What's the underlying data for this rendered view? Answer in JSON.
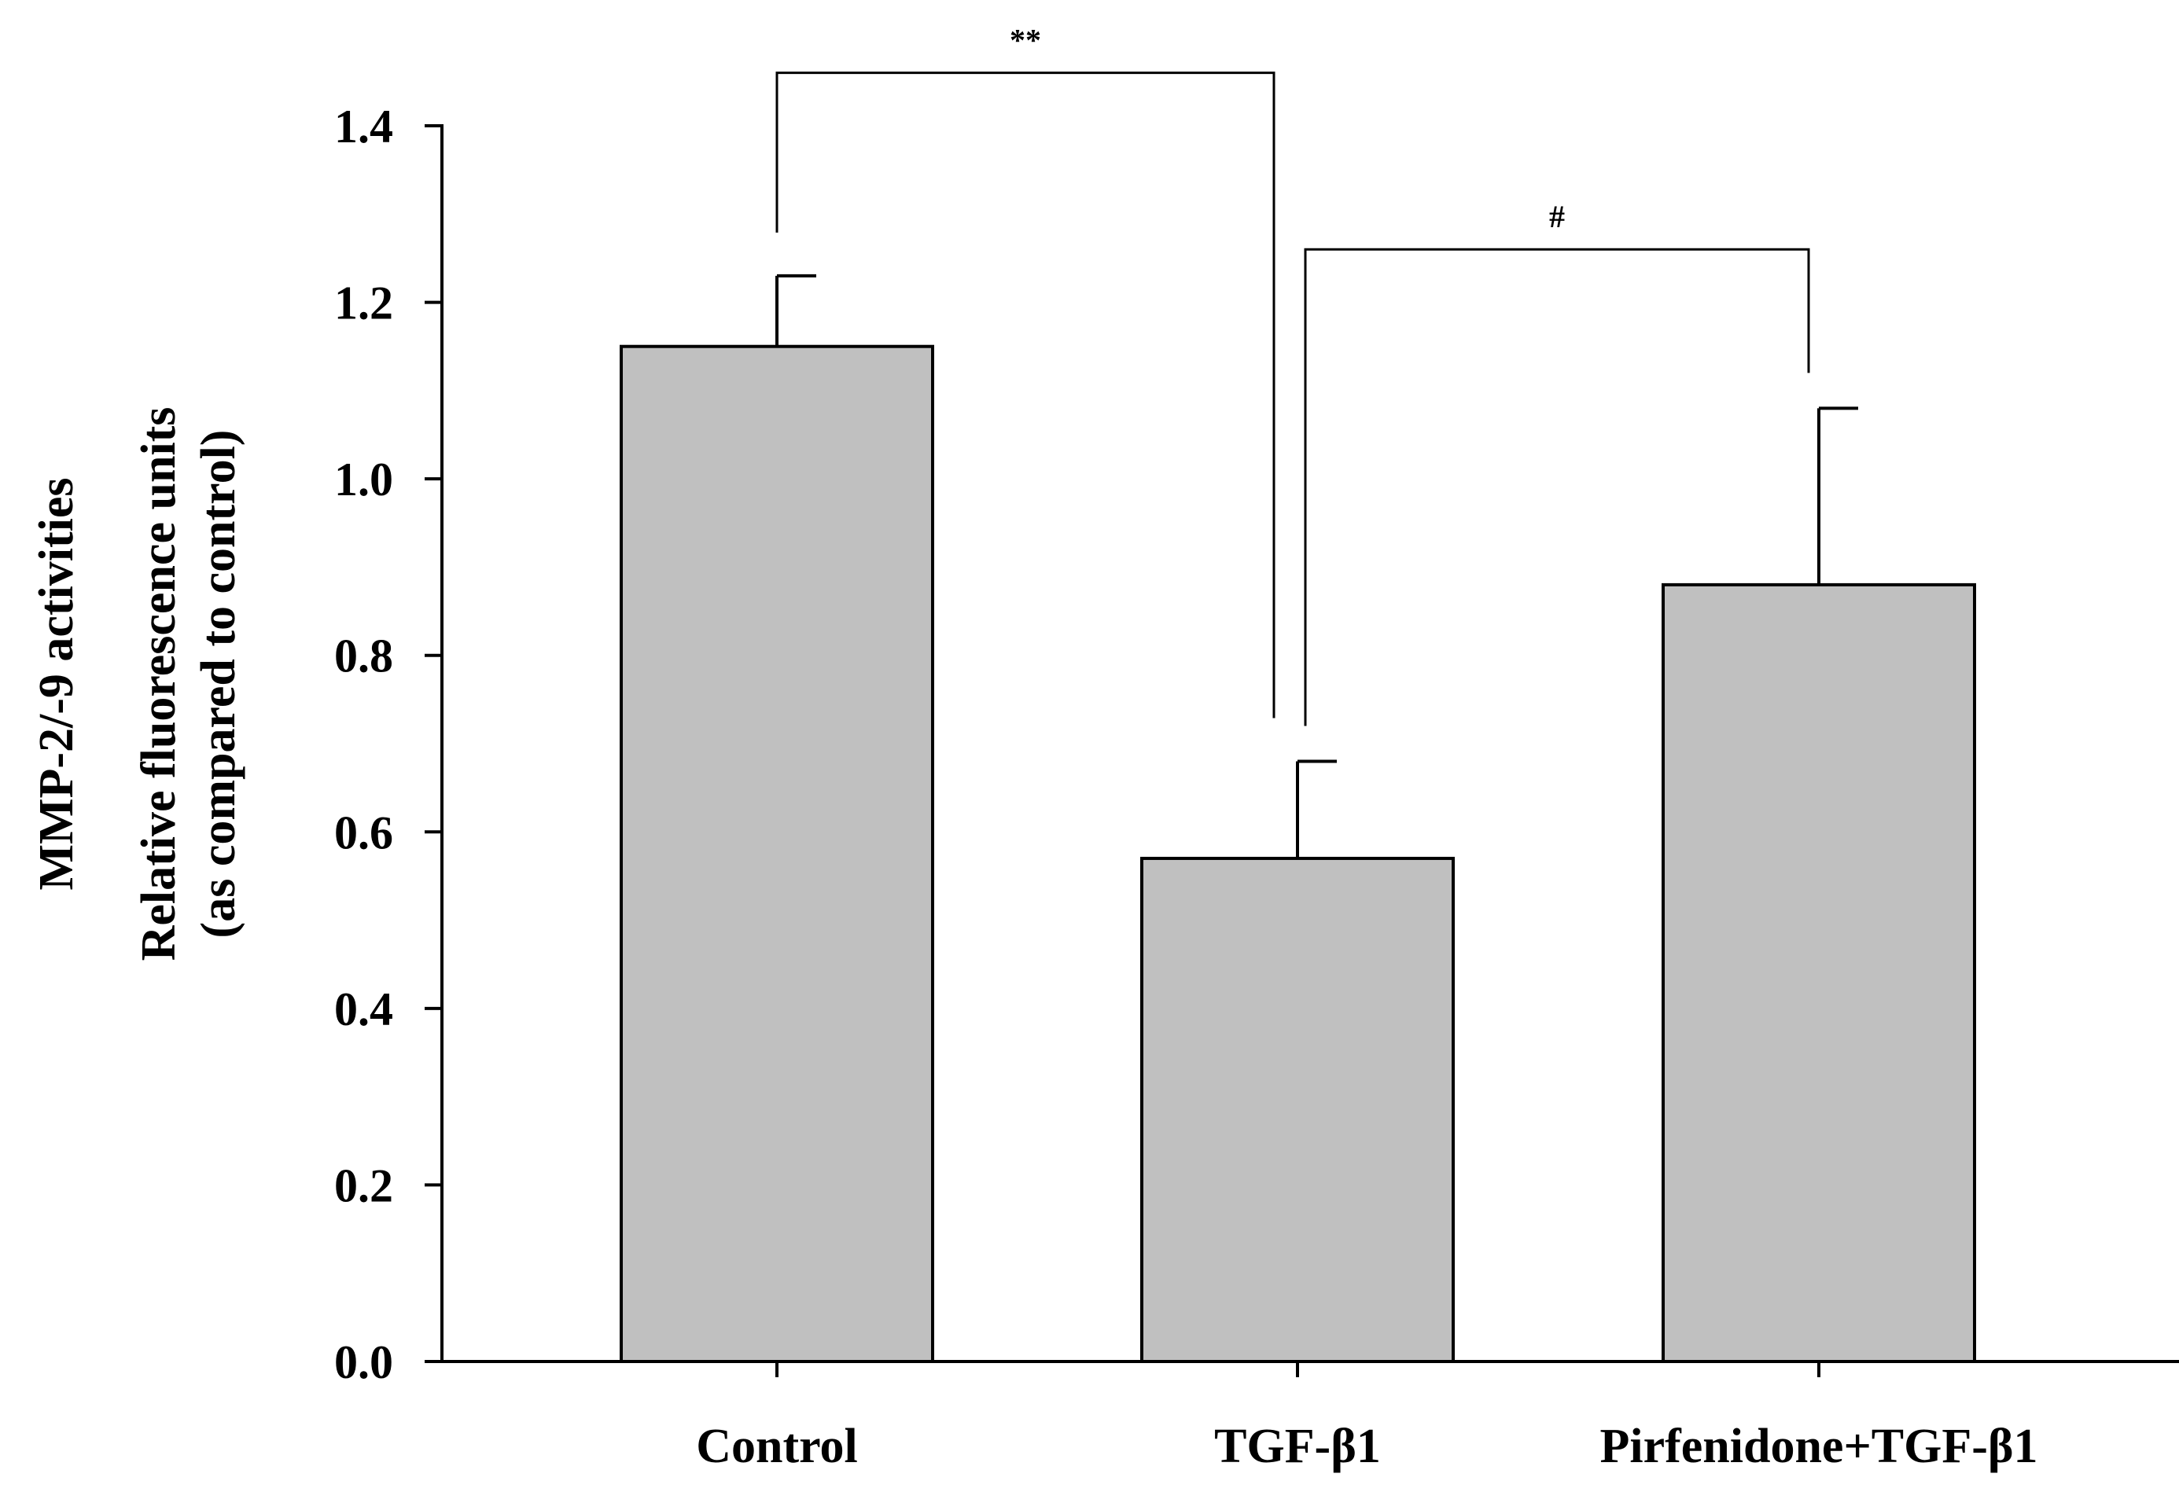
{
  "chart_data": {
    "type": "bar",
    "categories": [
      "Control",
      "TGF-β1",
      "Pirfenidone+TGF-β1"
    ],
    "values": [
      1.15,
      0.57,
      0.88
    ],
    "errors": [
      0.08,
      0.11,
      0.2
    ],
    "ylabel": [
      "MMP-2/-9 activities",
      "Relative fluorescence units",
      "(as compared to control)"
    ],
    "ylim": [
      0,
      1.4
    ],
    "yticks": [
      "0.0",
      "0.2",
      "0.4",
      "0.6",
      "0.8",
      "1.0",
      "1.2",
      "1.4"
    ],
    "grid": false,
    "bar_color": "#c0c0c0",
    "significance": [
      {
        "from": 0,
        "to": 1,
        "label": "**",
        "level": 1.46
      },
      {
        "from": 1,
        "to": 2,
        "label": "#",
        "level": 1.26
      }
    ]
  }
}
